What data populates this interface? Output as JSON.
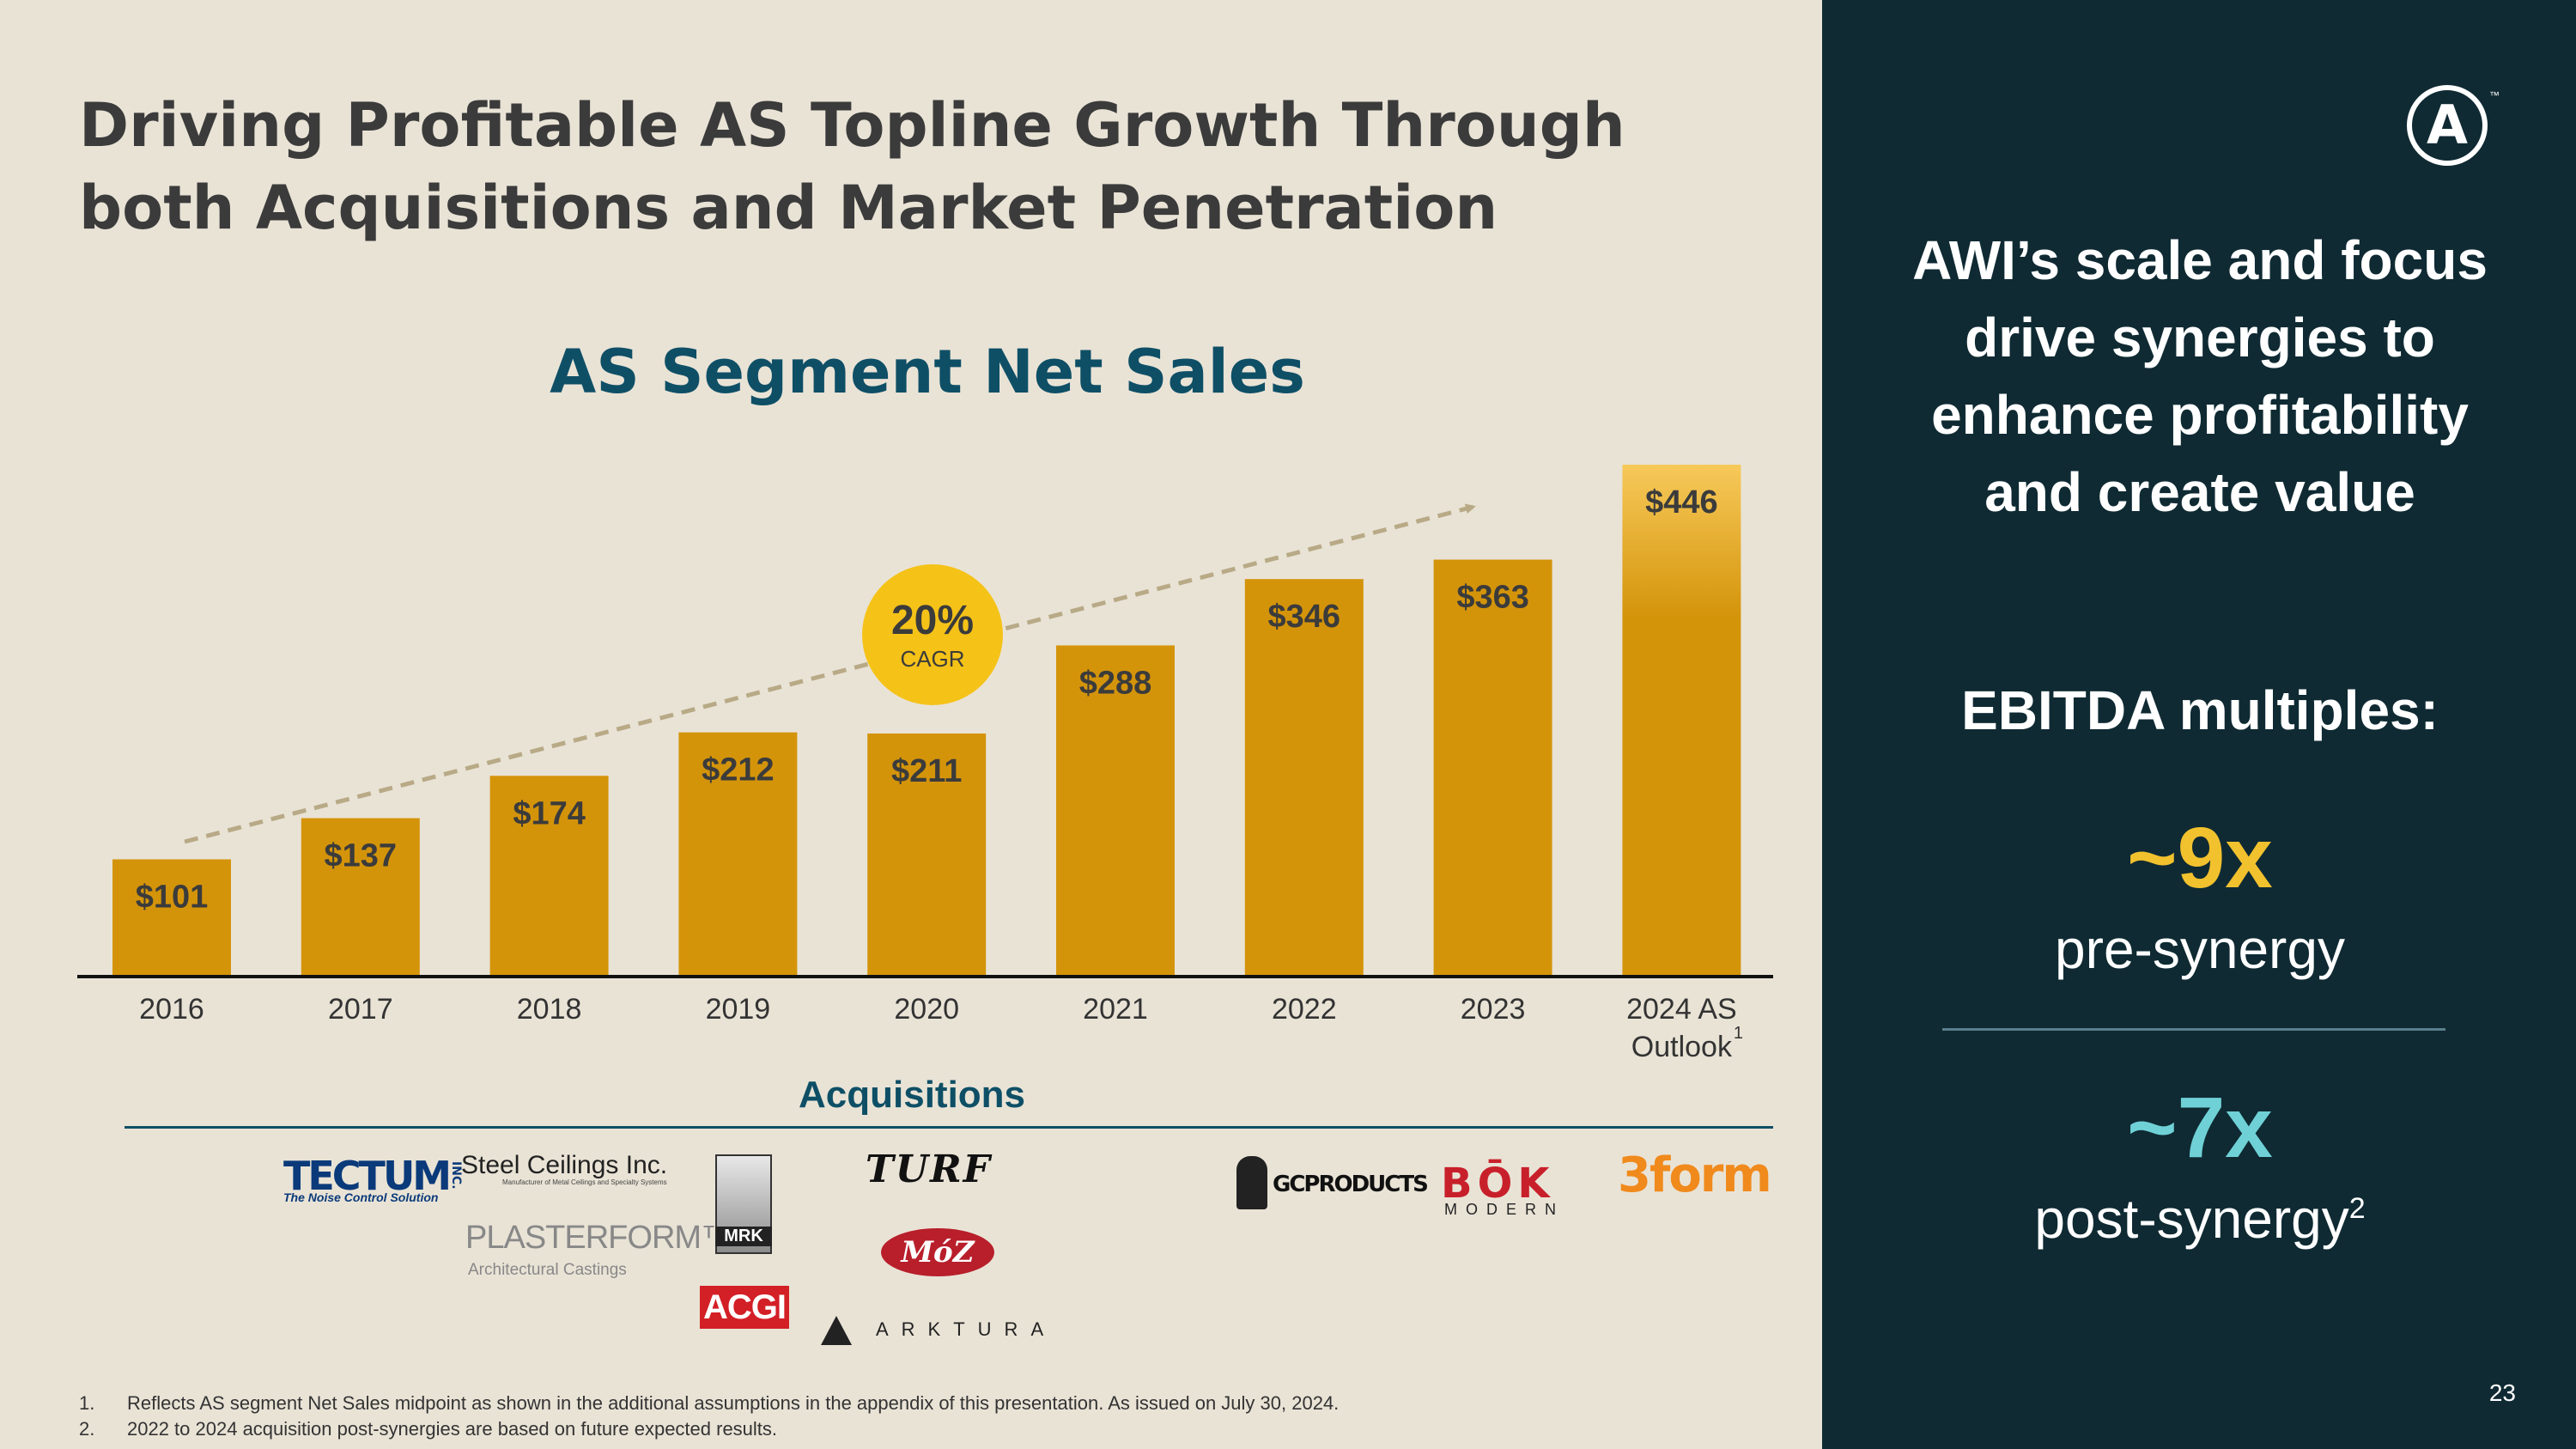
{
  "title_lines": [
    "Driving Profitable AS Topline Growth Through",
    "both Acquisitions and Market Penetration"
  ],
  "chart_data": {
    "type": "bar",
    "title": "AS Segment Net Sales",
    "categories": [
      "2016",
      "2017",
      "2018",
      "2019",
      "2020",
      "2021",
      "2022",
      "2023",
      "2024 AS Outlook"
    ],
    "values": [
      101,
      137,
      174,
      212,
      211,
      288,
      346,
      363,
      446
    ],
    "value_labels": [
      "$101",
      "$137",
      "$174",
      "$212",
      "$211",
      "$288",
      "$346",
      "$363",
      "$446"
    ],
    "last_category_lines": [
      "2024 AS",
      "Outlook"
    ],
    "last_category_footnote": "1",
    "ylim": [
      0,
      446
    ],
    "xlabel": "",
    "ylabel": "",
    "grid": false,
    "annotation": {
      "value": "20%",
      "label": "CAGR",
      "trend": "dashed arrow from 2016 to 2023"
    },
    "colors": {
      "bar": "#d4940a",
      "bar_highlight_top": "#f7c95a",
      "trend": "#b8aa86",
      "cagr_bubble": "#f5c218"
    }
  },
  "acquisitions": {
    "label": "Acquisitions",
    "logos": {
      "tectum": "TECTUM",
      "tectum_inc": "INC.",
      "tectum_sub": "The Noise Control Solution",
      "steel": "Steel Ceilings Inc.",
      "steel_sub": "Manufacturer of Metal Ceilings and Specialty Systems",
      "plasterform": "PLASTERFORM™",
      "plasterform_sub": "Architectural Castings",
      "mrk": "MRK",
      "acgi": "ACGI",
      "turf": "TURF",
      "moz": "MóZ",
      "arktura": "ARKTURA",
      "gc": "GCPRODUCTS",
      "bok": "BŌK",
      "bok_sub": "MODERN",
      "threeform": "3form"
    }
  },
  "footnotes": [
    {
      "num": "1.",
      "text": "Reflects AS segment Net Sales midpoint as shown in the additional assumptions in the appendix of this presentation. As issued on July 30, 2024."
    },
    {
      "num": "2.",
      "text": "2022 to 2024 acquisition post-synergies are based on future expected results."
    }
  ],
  "sidebar": {
    "brand_mark": "A",
    "brand_tm": "™",
    "headline_lines": [
      "AWI’s scale and focus",
      "drive synergies to",
      "enhance profitability",
      "and create value"
    ],
    "ebitda_label": "EBITDA multiples:",
    "pre_value": "~9x",
    "pre_label": "pre-synergy",
    "post_value": "~7x",
    "post_label": "post-synergy",
    "post_footnote": "2",
    "page_number": "23",
    "colors": {
      "panel": "#0f2a33",
      "pre": "#f2c12e",
      "post": "#6fd1d6"
    }
  }
}
